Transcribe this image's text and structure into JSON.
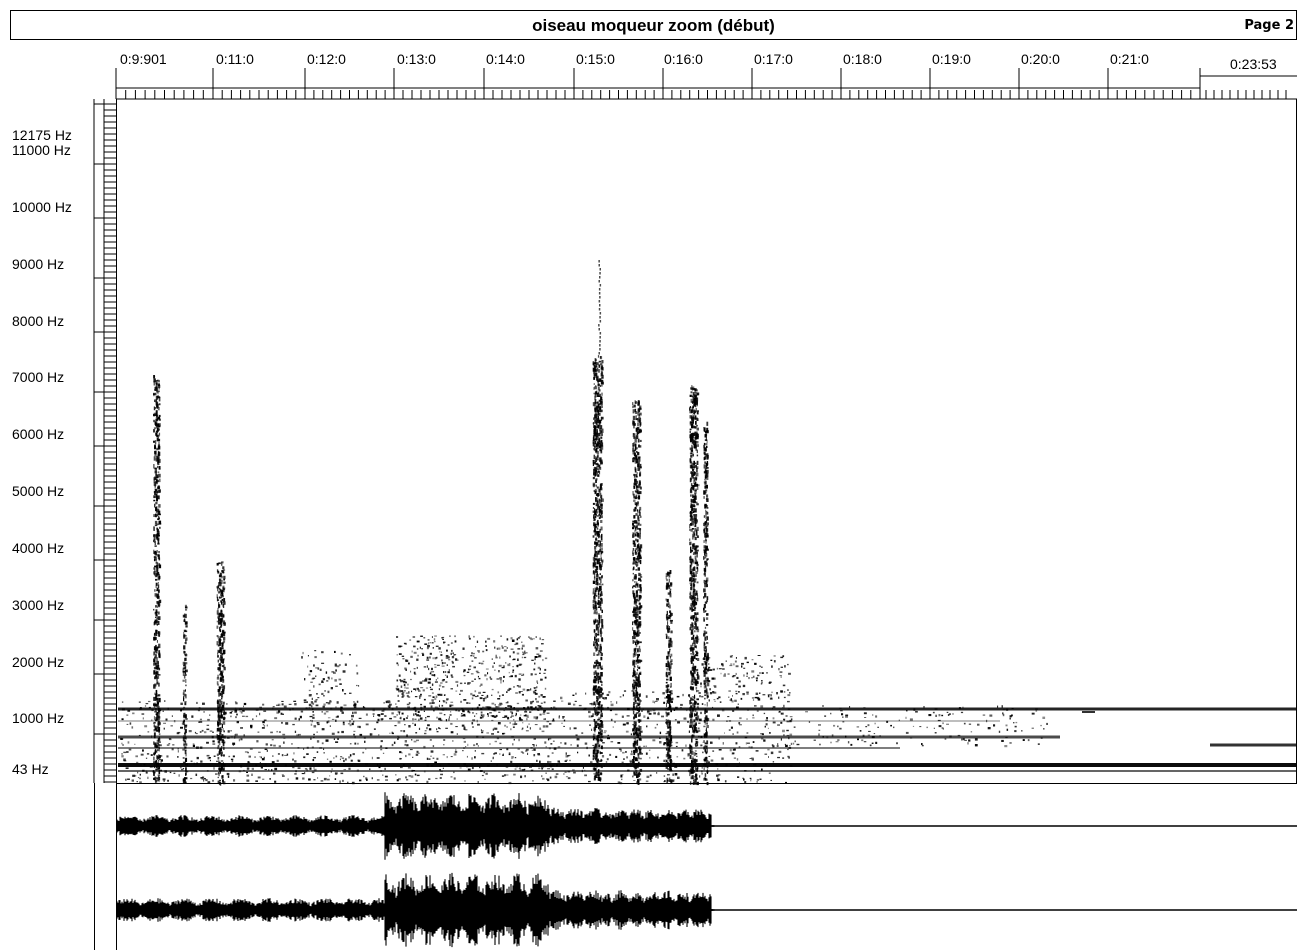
{
  "header": {
    "title": "oiseau moqueur zoom (début)",
    "page_label": "Page 2"
  },
  "time_axis": {
    "labels": [
      "0:9:901",
      "0:11:0",
      "0:12:0",
      "0:13:0",
      "0:14:0",
      "0:15:0",
      "0:16:0",
      "0:17:0",
      "0:18:0",
      "0:19:0",
      "0:20:0",
      "0:21:0",
      "0:23:53"
    ]
  },
  "frequency_axis": {
    "labels": [
      "12175 Hz",
      "11000 Hz",
      "10000 Hz",
      "9000 Hz",
      "8000 Hz",
      "7000 Hz",
      "6000 Hz",
      "5000 Hz",
      "4000 Hz",
      "3000 Hz",
      "2000 Hz",
      "1000 Hz",
      "43 Hz"
    ]
  },
  "colors": {
    "ink": "#000000",
    "paper": "#ffffff"
  }
}
